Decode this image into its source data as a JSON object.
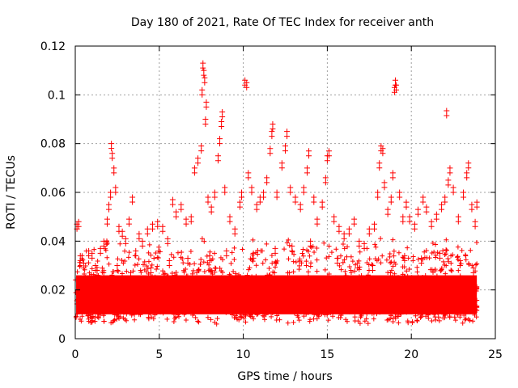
{
  "chart_data": {
    "type": "scatter",
    "title": "Day 180 of 2021, Rate Of TEC Index for receiver anth",
    "xlabel": "GPS time / hours",
    "ylabel": "ROTI / TECUs",
    "xlim": [
      0,
      25
    ],
    "ylim": [
      0,
      0.12
    ],
    "x_ticks": [
      0,
      5,
      10,
      15,
      20,
      25
    ],
    "x_tick_labels": [
      "0",
      "5",
      "10",
      "15",
      "20",
      "25"
    ],
    "y_ticks": [
      0,
      0.02,
      0.04,
      0.06,
      0.08,
      0.1,
      0.12
    ],
    "y_tick_labels": [
      "0",
      "0.02",
      "0.04",
      "0.06",
      "0.08",
      "0.1",
      "0.12"
    ],
    "grid": true,
    "marker": "+",
    "series": [
      {
        "name": "ROTI",
        "color": "#ff0000",
        "points": [
          [
            0.1,
            0.047
          ],
          [
            0.2,
            0.048
          ],
          [
            0.3,
            0.034
          ],
          [
            0.5,
            0.031
          ],
          [
            0.8,
            0.036
          ],
          [
            1.0,
            0.035
          ],
          [
            1.2,
            0.03
          ],
          [
            1.5,
            0.037
          ],
          [
            1.7,
            0.04
          ],
          [
            1.9,
            0.049
          ],
          [
            2.0,
            0.055
          ],
          [
            2.1,
            0.06
          ],
          [
            2.15,
            0.08
          ],
          [
            2.2,
            0.076
          ],
          [
            2.3,
            0.07
          ],
          [
            2.4,
            0.062
          ],
          [
            2.6,
            0.046
          ],
          [
            2.8,
            0.044
          ],
          [
            3.0,
            0.041
          ],
          [
            3.2,
            0.049
          ],
          [
            3.4,
            0.058
          ],
          [
            3.6,
            0.036
          ],
          [
            3.8,
            0.043
          ],
          [
            4.0,
            0.04
          ],
          [
            4.3,
            0.045
          ],
          [
            4.6,
            0.047
          ],
          [
            4.9,
            0.048
          ],
          [
            5.2,
            0.046
          ],
          [
            5.5,
            0.041
          ],
          [
            5.8,
            0.057
          ],
          [
            6.0,
            0.052
          ],
          [
            6.3,
            0.055
          ],
          [
            6.6,
            0.049
          ],
          [
            6.9,
            0.05
          ],
          [
            7.1,
            0.07
          ],
          [
            7.3,
            0.074
          ],
          [
            7.5,
            0.079
          ],
          [
            7.55,
            0.102
          ],
          [
            7.6,
            0.113
          ],
          [
            7.65,
            0.11
          ],
          [
            7.7,
            0.107
          ],
          [
            7.75,
            0.09
          ],
          [
            7.8,
            0.097
          ],
          [
            7.9,
            0.058
          ],
          [
            8.1,
            0.054
          ],
          [
            8.3,
            0.06
          ],
          [
            8.5,
            0.075
          ],
          [
            8.6,
            0.082
          ],
          [
            8.7,
            0.089
          ],
          [
            8.75,
            0.093
          ],
          [
            8.9,
            0.062
          ],
          [
            9.2,
            0.05
          ],
          [
            9.5,
            0.045
          ],
          [
            9.8,
            0.056
          ],
          [
            9.9,
            0.06
          ],
          [
            10.1,
            0.106
          ],
          [
            10.2,
            0.105
          ],
          [
            10.3,
            0.068
          ],
          [
            10.5,
            0.062
          ],
          [
            10.8,
            0.055
          ],
          [
            11.0,
            0.058
          ],
          [
            11.2,
            0.06
          ],
          [
            11.4,
            0.066
          ],
          [
            11.6,
            0.078
          ],
          [
            11.7,
            0.085
          ],
          [
            11.75,
            0.088
          ],
          [
            12.0,
            0.06
          ],
          [
            12.3,
            0.072
          ],
          [
            12.5,
            0.079
          ],
          [
            12.6,
            0.085
          ],
          [
            12.8,
            0.062
          ],
          [
            13.1,
            0.058
          ],
          [
            13.4,
            0.055
          ],
          [
            13.6,
            0.062
          ],
          [
            13.8,
            0.07
          ],
          [
            13.9,
            0.077
          ],
          [
            14.2,
            0.058
          ],
          [
            14.4,
            0.049
          ],
          [
            14.7,
            0.056
          ],
          [
            14.9,
            0.066
          ],
          [
            15.0,
            0.075
          ],
          [
            15.1,
            0.077
          ],
          [
            15.4,
            0.05
          ],
          [
            15.7,
            0.046
          ],
          [
            16.0,
            0.043
          ],
          [
            16.3,
            0.045
          ],
          [
            16.6,
            0.049
          ],
          [
            16.9,
            0.04
          ],
          [
            17.2,
            0.039
          ],
          [
            17.5,
            0.045
          ],
          [
            17.8,
            0.047
          ],
          [
            18.0,
            0.06
          ],
          [
            18.1,
            0.072
          ],
          [
            18.2,
            0.079
          ],
          [
            18.3,
            0.078
          ],
          [
            18.4,
            0.064
          ],
          [
            18.6,
            0.053
          ],
          [
            18.8,
            0.058
          ],
          [
            18.9,
            0.068
          ],
          [
            19.0,
            0.103
          ],
          [
            19.05,
            0.106
          ],
          [
            19.1,
            0.104
          ],
          [
            19.3,
            0.06
          ],
          [
            19.5,
            0.05
          ],
          [
            19.7,
            0.056
          ],
          [
            19.9,
            0.05
          ],
          [
            20.2,
            0.047
          ],
          [
            20.4,
            0.053
          ],
          [
            20.7,
            0.058
          ],
          [
            20.9,
            0.054
          ],
          [
            21.2,
            0.048
          ],
          [
            21.5,
            0.051
          ],
          [
            21.8,
            0.055
          ],
          [
            22.0,
            0.058
          ],
          [
            22.1,
            0.0935
          ],
          [
            22.2,
            0.065
          ],
          [
            22.3,
            0.07
          ],
          [
            22.5,
            0.062
          ],
          [
            22.8,
            0.05
          ],
          [
            23.1,
            0.06
          ],
          [
            23.3,
            0.068
          ],
          [
            23.4,
            0.072
          ],
          [
            23.6,
            0.055
          ],
          [
            23.8,
            0.048
          ],
          [
            23.9,
            0.056
          ],
          [
            0.6,
            0.025
          ],
          [
            1.3,
            0.028
          ],
          [
            2.5,
            0.03
          ],
          [
            3.3,
            0.027
          ],
          [
            4.5,
            0.029
          ],
          [
            5.6,
            0.032
          ],
          [
            6.7,
            0.033
          ],
          [
            8.0,
            0.034
          ],
          [
            9.0,
            0.036
          ],
          [
            10.6,
            0.035
          ],
          [
            11.9,
            0.037
          ],
          [
            12.9,
            0.038
          ],
          [
            14.0,
            0.04
          ],
          [
            15.6,
            0.033
          ],
          [
            16.8,
            0.031
          ],
          [
            17.7,
            0.03
          ],
          [
            19.6,
            0.034
          ],
          [
            20.6,
            0.033
          ],
          [
            21.7,
            0.035
          ],
          [
            22.9,
            0.032
          ],
          [
            23.7,
            0.029
          ]
        ]
      }
    ]
  }
}
